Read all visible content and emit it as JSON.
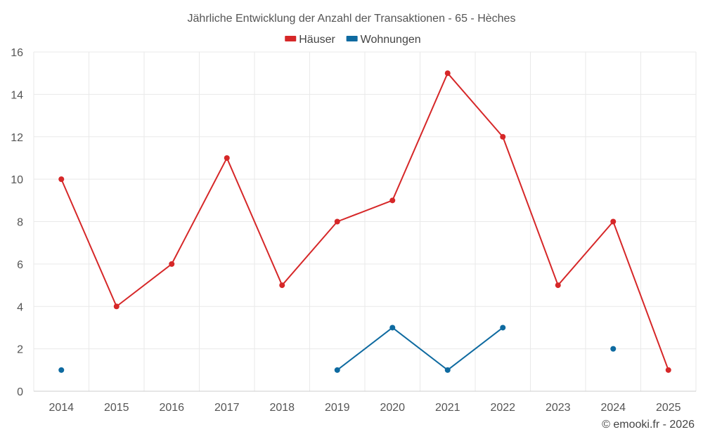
{
  "chart_data": {
    "type": "line",
    "title": "Jährliche Entwicklung der Anzahl der Transaktionen - 65 - Hèches",
    "categories": [
      "2014",
      "2015",
      "2016",
      "2017",
      "2018",
      "2019",
      "2020",
      "2021",
      "2022",
      "2023",
      "2024",
      "2025"
    ],
    "ylim": [
      0,
      16
    ],
    "yticks": [
      "0",
      "2",
      "4",
      "6",
      "8",
      "10",
      "12",
      "14",
      "16"
    ],
    "grid": true,
    "legend_position": "top-center",
    "series": [
      {
        "name": "Häuser",
        "color": "#d62728",
        "values": [
          10,
          4,
          6,
          11,
          5,
          8,
          9,
          15,
          12,
          5,
          8,
          1
        ]
      },
      {
        "name": "Wohnungen",
        "color": "#0e6aa0",
        "values": [
          1,
          null,
          null,
          null,
          null,
          1,
          3,
          1,
          3,
          null,
          2,
          null
        ]
      }
    ]
  },
  "credit": "© emooki.fr - 2026"
}
